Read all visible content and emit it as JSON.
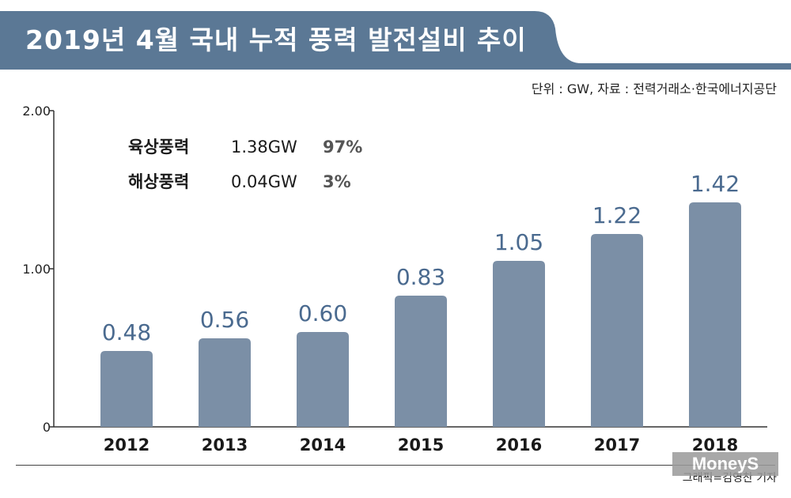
{
  "header": {
    "title": "2019년 4월 국내 누적 풍력 발전설비 추이",
    "source": "단위 : GW, 자료 : 전력거래소·한국에너지공단"
  },
  "summary": [
    {
      "label": "육상풍력",
      "value": "1.38GW",
      "share": "97%"
    },
    {
      "label": "해상풍력",
      "value": "0.04GW",
      "share": "3%"
    }
  ],
  "footer": {
    "credit": "그래픽=김영찬 기자",
    "watermark": "MoneyS"
  },
  "colors": {
    "title_bg": "#5b7895",
    "bar": "#7b8fa6",
    "value_label": "#4a6a8f"
  },
  "chart_data": {
    "type": "bar",
    "categories": [
      "2012",
      "2013",
      "2014",
      "2015",
      "2016",
      "2017",
      "2018"
    ],
    "values": [
      0.48,
      0.56,
      0.6,
      0.83,
      1.05,
      1.22,
      1.42
    ],
    "value_labels": [
      "0.48",
      "0.56",
      "0.60",
      "0.83",
      "1.05",
      "1.22",
      "1.42"
    ],
    "title": "2019년 4월 국내 누적 풍력 발전설비 추이",
    "xlabel": "",
    "ylabel": "",
    "yticks": [
      0,
      1.0,
      2.0
    ],
    "ytick_labels": [
      "0",
      "1.00",
      "2.00"
    ],
    "ylim": [
      0,
      2.0
    ],
    "grid": false,
    "legend": "none"
  }
}
